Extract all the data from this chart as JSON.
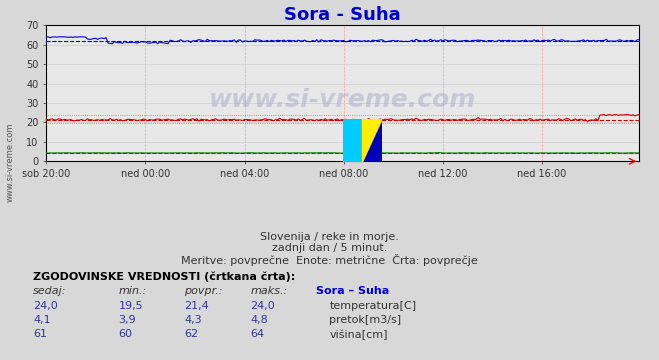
{
  "title": "Sora - Suha",
  "title_color": "#0000cc",
  "title_fontsize": 13,
  "bg_color": "#d8d8d8",
  "plot_bg_color": "#e8e8e8",
  "xlabel": "",
  "ylabel": "",
  "xlim": [
    0,
    287
  ],
  "ylim": [
    0,
    70
  ],
  "yticks": [
    0,
    10,
    20,
    30,
    40,
    50,
    60,
    70
  ],
  "xtick_labels": [
    "sob 20:00",
    "ned 00:00",
    "ned 04:00",
    "ned 08:00",
    "ned 12:00",
    "ned 16:00"
  ],
  "xtick_positions": [
    0,
    48,
    96,
    144,
    192,
    240
  ],
  "grid_color_v": "#ff9999",
  "grid_color_h": "#cccccc",
  "temp_color": "#cc0000",
  "temp_avg": 21.4,
  "temp_min": 19.5,
  "temp_max": 24.0,
  "temp_current": 24.0,
  "pretok_color": "#007700",
  "pretok_avg": 4.3,
  "pretok_min": 3.9,
  "pretok_max": 4.8,
  "pretok_current": 4.1,
  "visina_color": "#0000cc",
  "visina_avg": 62.0,
  "visina_min": 60.0,
  "visina_max": 64.0,
  "visina_current": 61.0,
  "watermark": "www.si-vreme.com",
  "subtitle1": "Slovenija / reke in morje.",
  "subtitle2": "zadnji dan / 5 minut.",
  "subtitle3": "Meritve: povprečne  Enote: metrične  Črta: povprečje",
  "table_header": "ZGODOVINSKE VREDNOSTI (črtkana črta):",
  "col_sedaj": "sedaj:",
  "col_min": "min.:",
  "col_povpr": "povpr.:",
  "col_maks": "maks.:",
  "col_station": "Sora – Suha",
  "row1_label": "temperatura[C]",
  "row2_label": "pretok[m3/s]",
  "row3_label": "višina[cm]",
  "left_label": "www.si-vreme.com",
  "n_points": 288
}
